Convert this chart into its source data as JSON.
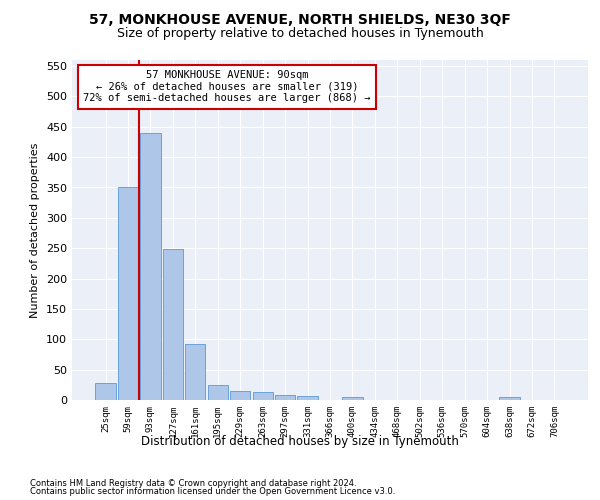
{
  "title": "57, MONKHOUSE AVENUE, NORTH SHIELDS, NE30 3QF",
  "subtitle": "Size of property relative to detached houses in Tynemouth",
  "xlabel": "Distribution of detached houses by size in Tynemouth",
  "ylabel": "Number of detached properties",
  "footnote1": "Contains HM Land Registry data © Crown copyright and database right 2024.",
  "footnote2": "Contains public sector information licensed under the Open Government Licence v3.0.",
  "annotation_line1": "57 MONKHOUSE AVENUE: 90sqm",
  "annotation_line2": "← 26% of detached houses are smaller (319)",
  "annotation_line3": "72% of semi-detached houses are larger (868) →",
  "bin_labels": [
    "25sqm",
    "59sqm",
    "93sqm",
    "127sqm",
    "161sqm",
    "195sqm",
    "229sqm",
    "263sqm",
    "297sqm",
    "331sqm",
    "366sqm",
    "400sqm",
    "434sqm",
    "468sqm",
    "502sqm",
    "536sqm",
    "570sqm",
    "604sqm",
    "638sqm",
    "672sqm",
    "706sqm"
  ],
  "bar_heights": [
    28,
    350,
    440,
    248,
    93,
    25,
    15,
    13,
    8,
    7,
    0,
    5,
    0,
    0,
    0,
    0,
    0,
    0,
    5,
    0,
    0
  ],
  "bar_color": "#aec6e8",
  "bar_edge_color": "#5a9ad5",
  "red_line_color": "#cc0000",
  "annotation_box_color": "#cc0000",
  "background_color": "#eaeff8",
  "grid_color": "#ffffff",
  "ylim": [
    0,
    560
  ],
  "yticks": [
    0,
    50,
    100,
    150,
    200,
    250,
    300,
    350,
    400,
    450,
    500,
    550
  ]
}
